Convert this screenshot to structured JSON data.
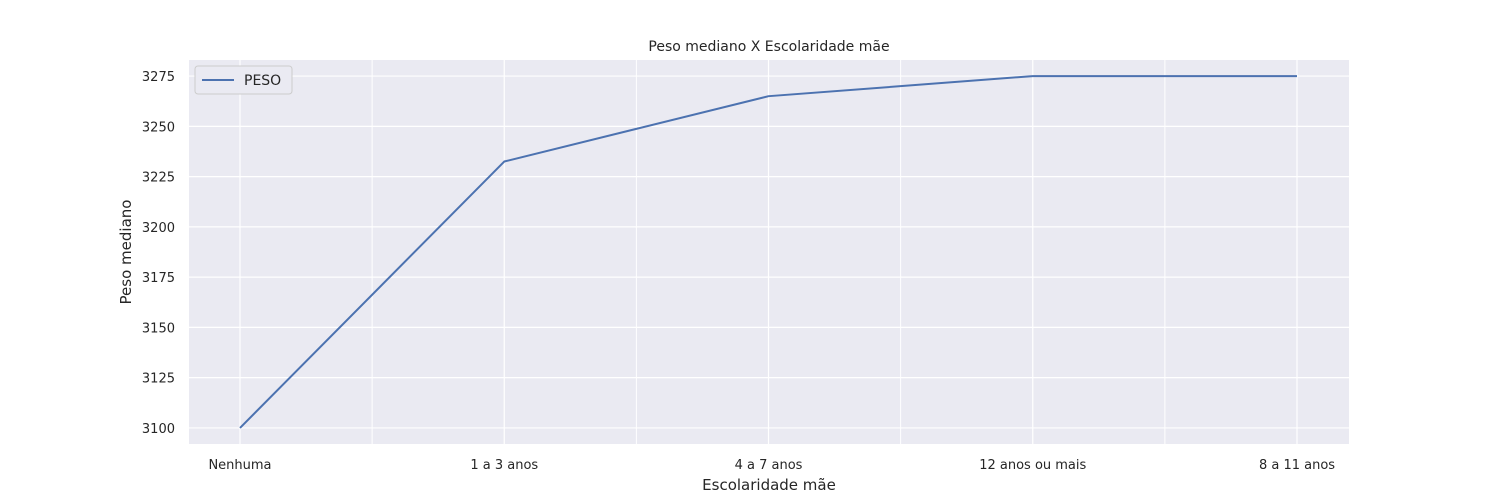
{
  "chart_data": {
    "type": "line",
    "title": "Peso mediano X Escolaridade mãe",
    "xlabel": "Escolaridade mãe",
    "ylabel": "Peso mediano",
    "categories": [
      "Nenhuma",
      "1 a 3 anos",
      "4 a 7 anos",
      "12 anos ou mais",
      "8 a 11 anos"
    ],
    "series": [
      {
        "name": "PESO",
        "values": [
          3100,
          3232.5,
          3265,
          3275,
          3275
        ]
      }
    ],
    "yticks": [
      3100,
      3125,
      3150,
      3175,
      3200,
      3225,
      3250,
      3275
    ],
    "ylim": [
      3092,
      3283
    ],
    "grid": true,
    "legend": "top-left",
    "colors": {
      "line": "#4c72b0",
      "background": "#eaeaf2",
      "grid": "#ffffff"
    }
  }
}
